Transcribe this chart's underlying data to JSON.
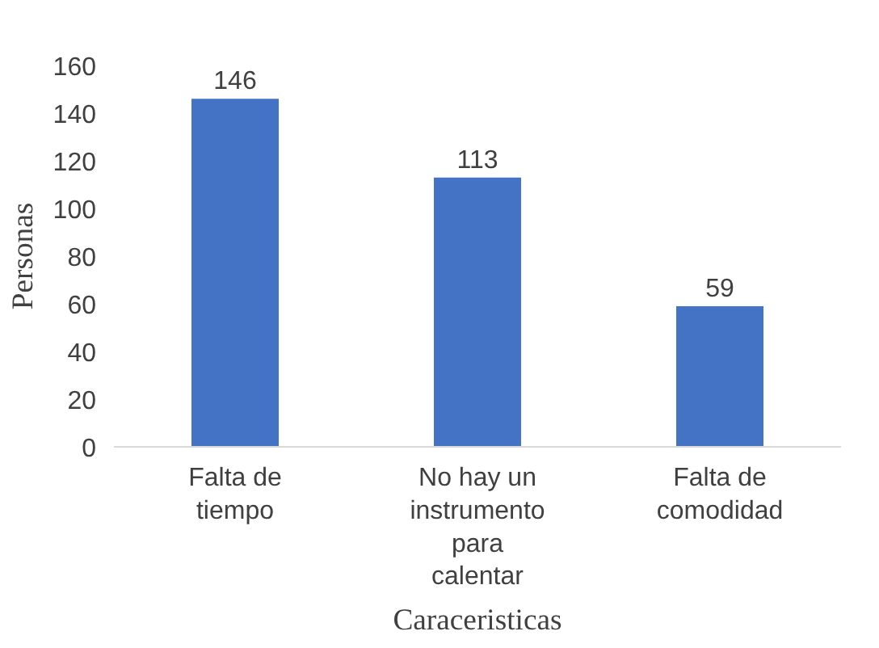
{
  "chart_data": {
    "type": "bar",
    "xlabel": "Caraceristicas",
    "ylabel": "Personas",
    "categories": [
      "Falta de tiempo",
      "No hay un instrumento para calentar",
      "Falta de comodidad"
    ],
    "values": [
      146,
      113,
      59
    ],
    "color": "#4472c4",
    "data_labels": true,
    "ylim": [
      0,
      160
    ],
    "yticks": [
      0,
      20,
      40,
      60,
      80,
      100,
      120,
      140,
      160
    ],
    "grid": false
  }
}
